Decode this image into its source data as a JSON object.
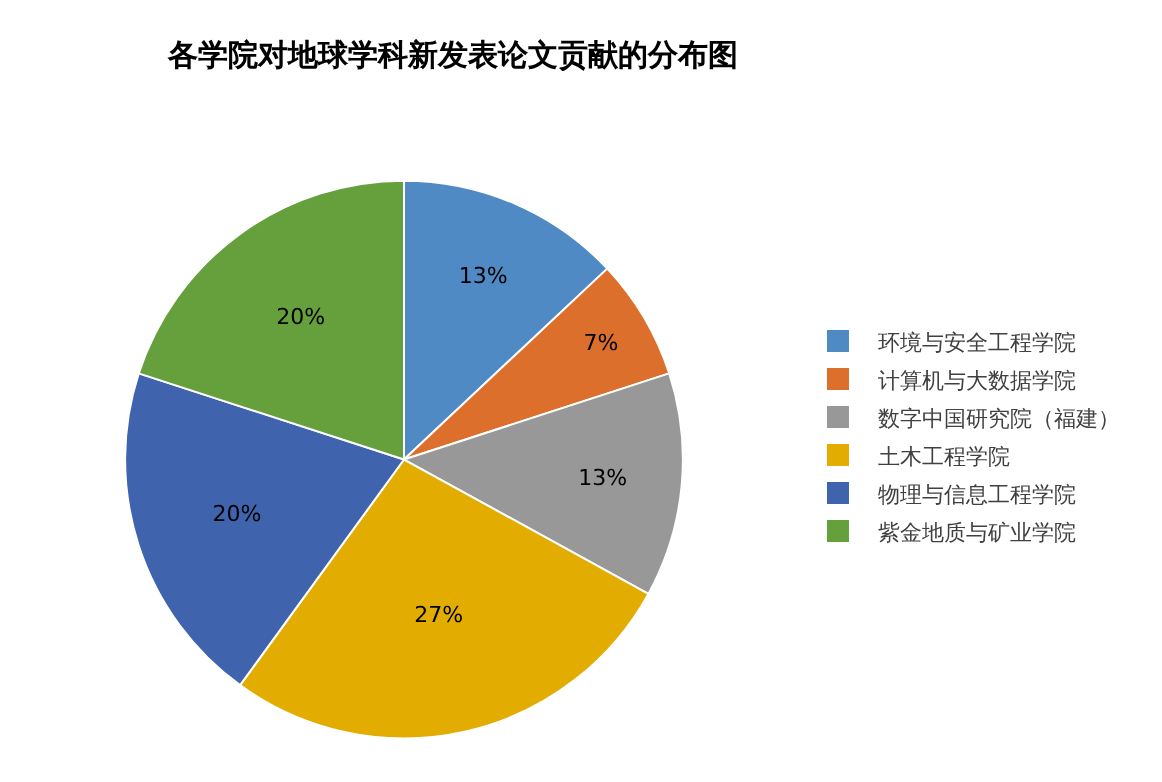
{
  "chart_data": {
    "type": "pie",
    "title": "各学院对地球学科新发表论文贡献的分布图",
    "categories": [
      "环境与安全工程学院",
      "计算机与大数据学院",
      "数字中国研究院（福建）",
      "土木工程学院",
      "物理与信息工程学院",
      "紫金地质与矿业学院"
    ],
    "values": [
      13,
      7,
      13,
      27,
      20,
      20
    ],
    "value_labels": [
      "13%",
      "7%",
      "13%",
      "27%",
      "20%",
      "20%"
    ],
    "colors": [
      "#4f8ac4",
      "#dd6f2c",
      "#989898",
      "#e2ad00",
      "#3f63ad",
      "#65a03c"
    ],
    "legend": "right"
  }
}
